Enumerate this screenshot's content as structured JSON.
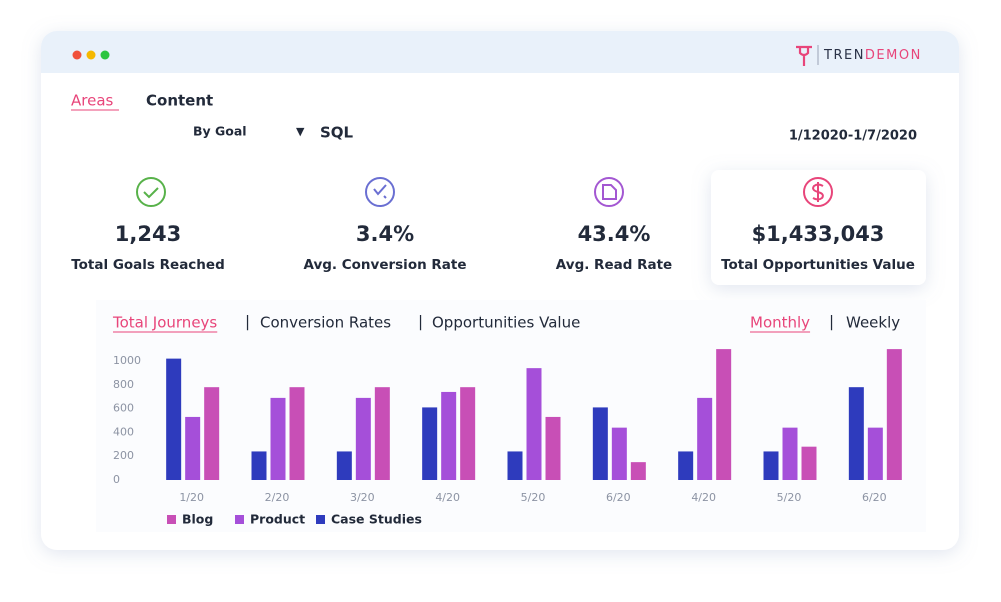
{
  "brand": {
    "left": "TREN",
    "right": "DEMON"
  },
  "tabs": [
    "Areas",
    "Content"
  ],
  "filter": {
    "label": "By Goal",
    "arrow": "▼",
    "value": "SQL"
  },
  "date_range": "1/12020-1/7/2020",
  "kpis": [
    {
      "value": "1,243",
      "label": "Total Goals Reached"
    },
    {
      "value": "3.4%",
      "label": "Avg. Conversion Rate"
    },
    {
      "value": "43.4%",
      "label": "Avg. Read Rate"
    },
    {
      "value": "$1,433,043",
      "label": "Total Opportunities Value"
    }
  ],
  "separator": "|",
  "chart_tabs": [
    "Total Journeys",
    "Conversion Rates",
    "Opportunities Value"
  ],
  "period_tabs": [
    "Monthly",
    "Weekly"
  ],
  "chart_data": {
    "type": "bar",
    "categories": [
      "1/20",
      "2/20",
      "3/20",
      "4/20",
      "5/20",
      "6/20",
      "4/20",
      "5/20",
      "6/20"
    ],
    "series": [
      {
        "name": "Blog",
        "color": "#c84fb6",
        "values": [
          780,
          780,
          780,
          780,
          530,
          150,
          1100,
          280,
          1100
        ]
      },
      {
        "name": "Product",
        "color": "#a54fd9",
        "values": [
          530,
          690,
          690,
          740,
          940,
          440,
          690,
          440,
          440
        ]
      },
      {
        "name": "Case Studies",
        "color": "#2e3bbd",
        "values": [
          1020,
          240,
          240,
          610,
          240,
          610,
          240,
          240,
          780
        ]
      }
    ],
    "ylim": [
      0,
      1100
    ],
    "yticks": [
      0,
      200,
      400,
      600,
      800,
      1000
    ],
    "grid": false
  }
}
